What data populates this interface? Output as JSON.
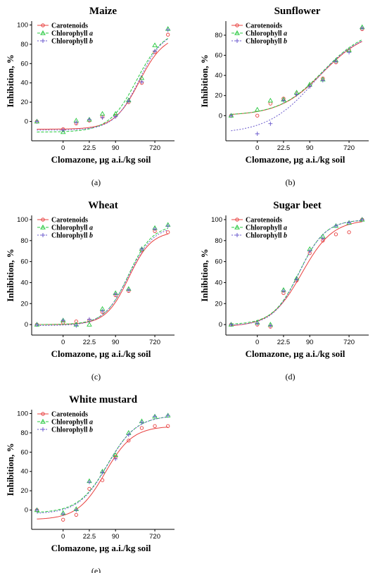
{
  "legend": {
    "carotenoids": "Carotenoids",
    "chlorophyll_a_base": "Chlorophyll ",
    "chlorophyll_a_italic": "a",
    "chlorophyll_b_base": "Chlorophyll ",
    "chlorophyll_b_italic": "b"
  },
  "colors": {
    "carotenoids": "#e8403f",
    "chlorophyll_a": "#27c93f",
    "chlorophyll_b": "#6a5acd"
  },
  "chart_data": [
    {
      "type": "scatter",
      "panel": "(a)",
      "title": "Maize",
      "xlabel": "Clomazone, µg a.i./kg soil",
      "ylabel": "Inhibition, %",
      "x_tick_labels": [
        "0",
        "22.5",
        "90",
        "720"
      ],
      "y_ticks": [
        0,
        20,
        40,
        60,
        80,
        100
      ],
      "ylim": [
        -15,
        100
      ],
      "legend_position": "top-left",
      "x": [
        -1,
        0,
        0.5,
        1,
        1.5,
        2,
        2.5,
        3,
        3.5,
        4
      ],
      "series": [
        {
          "name": "Carotenoids",
          "values": [
            0,
            -8,
            -2,
            1,
            5,
            6,
            20,
            40,
            72,
            90
          ]
        },
        {
          "name": "Chlorophyll a",
          "values": [
            0,
            -11,
            1,
            2,
            8,
            8,
            22,
            45,
            79,
            96
          ]
        },
        {
          "name": "Chlorophyll b",
          "values": [
            0,
            -9,
            -1,
            2,
            4,
            5,
            21,
            41,
            73,
            95
          ]
        }
      ]
    },
    {
      "type": "scatter",
      "panel": "(b)",
      "title": "Sunflower",
      "xlabel": "Clomazone, µg a.i./kg soil",
      "ylabel": "Inhibition, %",
      "x_tick_labels": [
        "0",
        "22.5",
        "90",
        "720"
      ],
      "y_ticks": [
        0,
        20,
        40,
        60,
        80
      ],
      "ylim": [
        -20,
        90
      ],
      "legend_position": "top-left",
      "x": [
        -1,
        0,
        0.5,
        1,
        1.5,
        2,
        2.5,
        3,
        3.5,
        4
      ],
      "series": [
        {
          "name": "Carotenoids",
          "values": [
            0,
            0,
            12,
            17,
            22,
            30,
            37,
            53,
            65,
            86
          ]
        },
        {
          "name": "Chlorophyll a",
          "values": [
            0,
            6,
            15,
            16,
            23,
            31,
            36,
            55,
            65,
            88
          ]
        },
        {
          "name": "Chlorophyll b",
          "values": [
            0,
            -18,
            -8,
            15,
            21,
            29,
            35,
            54,
            63,
            87
          ]
        }
      ]
    },
    {
      "type": "scatter",
      "panel": "(c)",
      "title": "Wheat",
      "xlabel": "Clomazone, µg a.i./kg soil",
      "ylabel": "Inhibition, %",
      "x_tick_labels": [
        "0",
        "22.5",
        "90",
        "720"
      ],
      "y_ticks": [
        0,
        20,
        40,
        60,
        80,
        100
      ],
      "ylim": [
        -5,
        100
      ],
      "legend_position": "top-left",
      "x": [
        -1,
        0,
        0.5,
        1,
        1.5,
        2,
        2.5,
        3,
        3.5,
        4
      ],
      "series": [
        {
          "name": "Carotenoids",
          "values": [
            0,
            2,
            3,
            4,
            12,
            28,
            32,
            71,
            89,
            88
          ]
        },
        {
          "name": "Chlorophyll a",
          "values": [
            0,
            4,
            0,
            0,
            15,
            30,
            34,
            72,
            92,
            95
          ]
        },
        {
          "name": "Chlorophyll b",
          "values": [
            0,
            4,
            -1,
            5,
            13,
            29,
            33,
            72,
            91,
            94
          ]
        }
      ]
    },
    {
      "type": "scatter",
      "panel": "(d)",
      "title": "Sugar beet",
      "xlabel": "Clomazone, µg a.i./kg soil",
      "ylabel": "Inhibition, %",
      "x_tick_labels": [
        "0",
        "22.5",
        "90",
        "720"
      ],
      "y_ticks": [
        0,
        20,
        40,
        60,
        80,
        100
      ],
      "ylim": [
        -5,
        100
      ],
      "legend_position": "top-left",
      "x": [
        -1,
        0,
        0.5,
        1,
        1.5,
        2,
        2.5,
        3,
        3.5,
        4
      ],
      "series": [
        {
          "name": "Carotenoids",
          "values": [
            0,
            0,
            -2,
            30,
            42,
            68,
            80,
            86,
            88,
            100
          ]
        },
        {
          "name": "Chlorophyll a",
          "values": [
            0,
            2,
            0,
            33,
            44,
            72,
            84,
            94,
            97,
            100
          ]
        },
        {
          "name": "Chlorophyll b",
          "values": [
            0,
            1,
            -1,
            32,
            43,
            70,
            82,
            94,
            97,
            100
          ]
        }
      ]
    },
    {
      "type": "scatter",
      "panel": "(e)",
      "title": "White mustard",
      "xlabel": "Clomazone, µg a.i./kg soil",
      "ylabel": "Inhibition, %",
      "x_tick_labels": [
        "0",
        "22.5",
        "90",
        "720"
      ],
      "y_ticks": [
        0,
        20,
        40,
        60,
        80,
        100
      ],
      "ylim": [
        -15,
        100
      ],
      "legend_position": "top-left",
      "x": [
        -1,
        0,
        0.5,
        1,
        1.5,
        2,
        2.5,
        3,
        3.5,
        4
      ],
      "series": [
        {
          "name": "Carotenoids",
          "values": [
            0,
            -10,
            -5,
            22,
            31,
            55,
            72,
            85,
            87,
            87
          ]
        },
        {
          "name": "Chlorophyll a",
          "values": [
            0,
            -3,
            1,
            30,
            40,
            57,
            80,
            92,
            97,
            98
          ]
        },
        {
          "name": "Chlorophyll b",
          "values": [
            0,
            -4,
            0,
            29,
            39,
            53,
            78,
            91,
            97,
            98
          ]
        }
      ]
    }
  ]
}
